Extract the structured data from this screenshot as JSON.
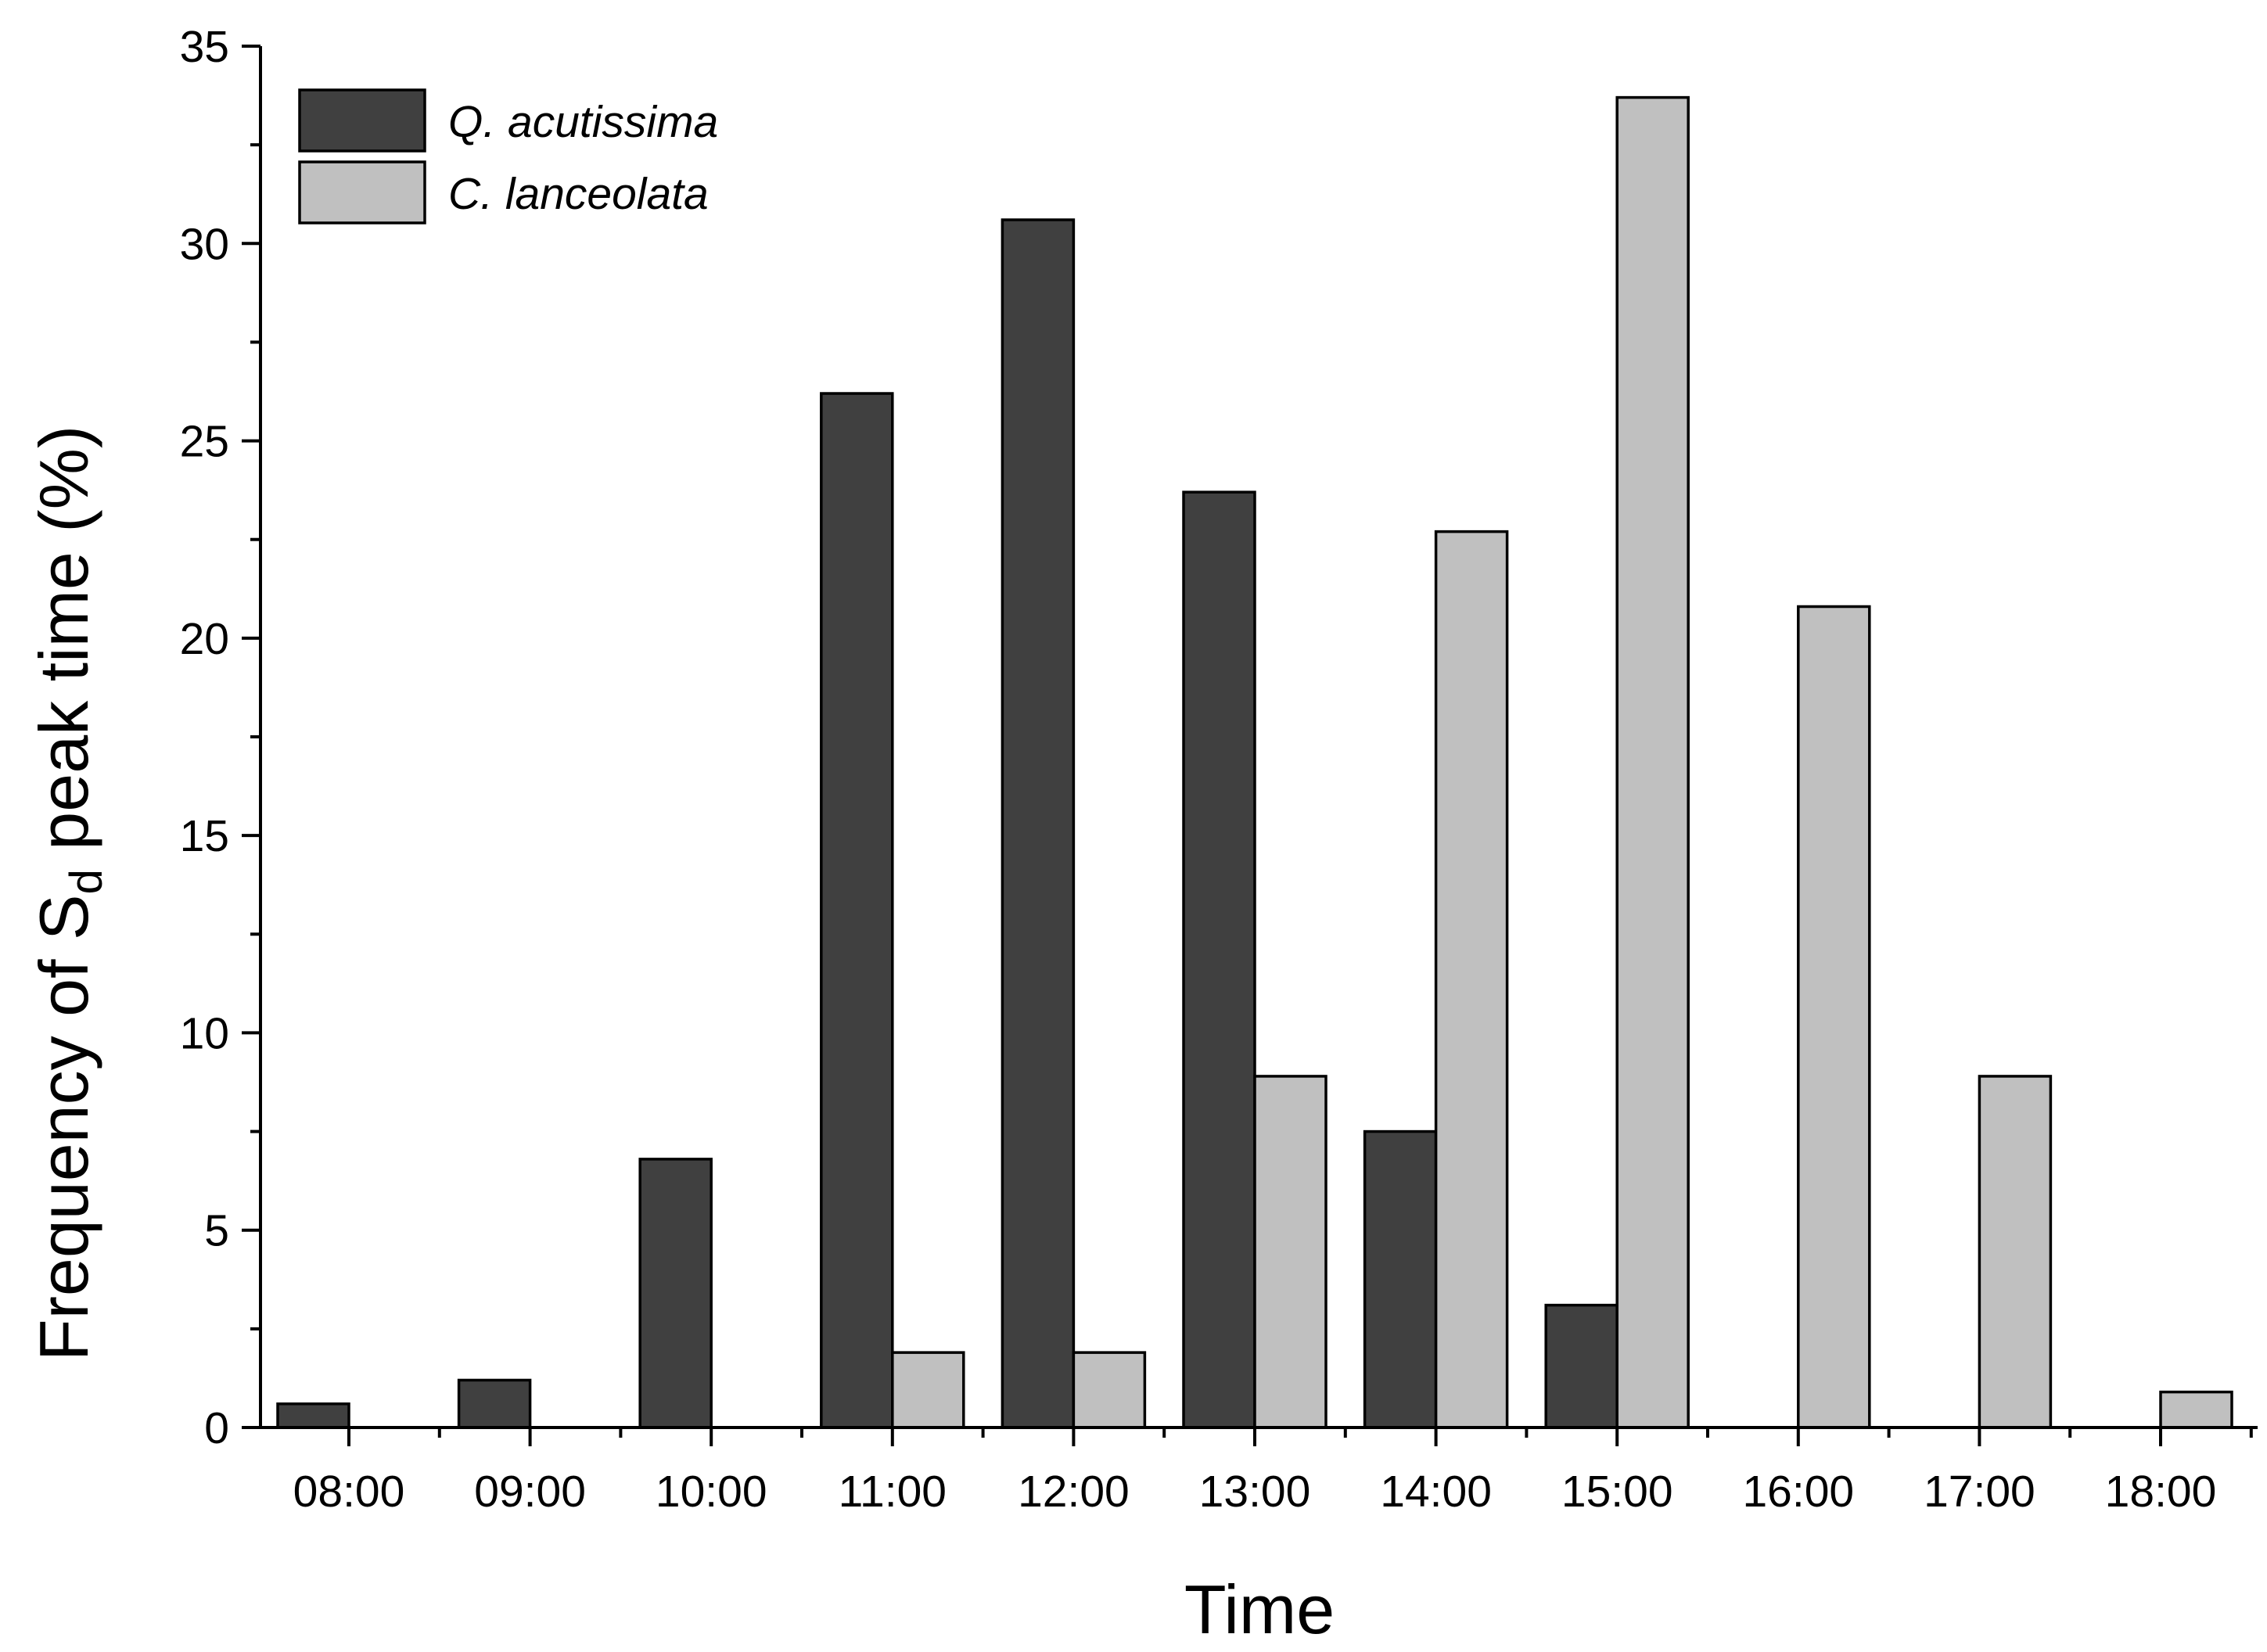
{
  "chart_data": {
    "type": "bar",
    "xlabel": "Time",
    "ylabel": {
      "prefix": "Frequency of S",
      "subscript": "d",
      "suffix": " peak time (%)"
    },
    "categories": [
      "08:00",
      "09:00",
      "10:00",
      "11:00",
      "12:00",
      "13:00",
      "14:00",
      "15:00",
      "16:00",
      "17:00",
      "18:00"
    ],
    "ylim": [
      0,
      35
    ],
    "yticks": [
      0,
      5,
      10,
      15,
      20,
      25,
      30,
      35
    ],
    "series": [
      {
        "name": "Q. acutissima",
        "color": "#404040",
        "values": [
          0.6,
          1.2,
          6.8,
          26.2,
          30.6,
          23.7,
          7.5,
          3.1,
          0,
          0,
          0
        ]
      },
      {
        "name": "C. lanceolata",
        "color": "#c0c0c0",
        "values": [
          0,
          0,
          0,
          1.9,
          1.9,
          8.9,
          22.7,
          33.7,
          20.8,
          8.9,
          0.9
        ]
      }
    ],
    "legend_position": "top-left",
    "grid": false
  }
}
